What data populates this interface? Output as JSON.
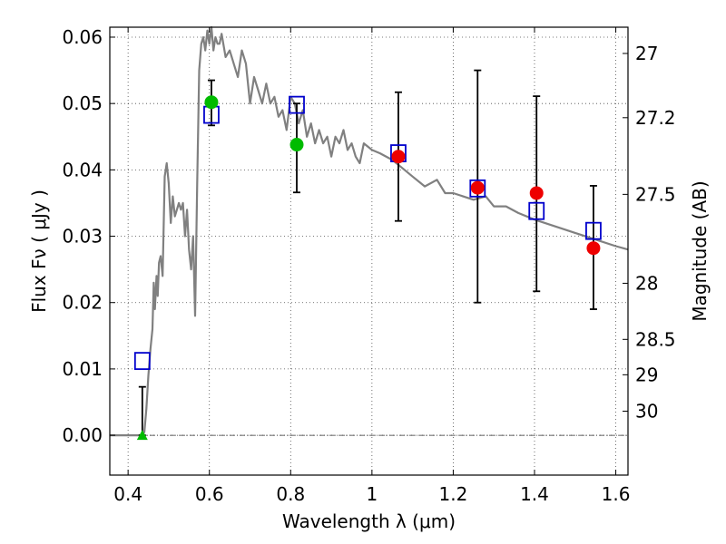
{
  "chart_data": {
    "type": "scatter",
    "title": "",
    "xlabel": "Wavelength  λ (μm)",
    "ylabel": "Flux  Fν  ( μJy )",
    "ylabel_right": "Magnitude (AB)",
    "xlim": [
      0.355,
      1.63
    ],
    "ylim": [
      -0.006,
      0.0615
    ],
    "grid": true,
    "x_ticks": [
      0.4,
      0.6,
      0.8,
      1.0,
      1.2,
      1.4,
      1.6
    ],
    "x_tick_labels": [
      "0.4",
      "0.6",
      "0.8",
      "1",
      "1.2",
      "1.4",
      "1.6"
    ],
    "y_ticks": [
      0.0,
      0.01,
      0.02,
      0.03,
      0.04,
      0.05,
      0.06
    ],
    "y_tick_labels": [
      "0.00",
      "0.01",
      "0.02",
      "0.03",
      "0.04",
      "0.05",
      "0.06"
    ],
    "mag_ticks": [
      {
        "label": "27",
        "mag": 27.0
      },
      {
        "label": "27.2",
        "mag": 27.2
      },
      {
        "label": "27.5",
        "mag": 27.5
      },
      {
        "label": "28",
        "mag": 28.0
      },
      {
        "label": "28.5",
        "mag": 28.5
      },
      {
        "label": "29",
        "mag": 29.0
      },
      {
        "label": "30",
        "mag": 30.0
      }
    ],
    "series": [
      {
        "kind": "line",
        "color": "#808080",
        "x": [
          0.355,
          0.42,
          0.425,
          0.43,
          0.435,
          0.44,
          0.445,
          0.45,
          0.455,
          0.46,
          0.463,
          0.466,
          0.47,
          0.473,
          0.476,
          0.48,
          0.485,
          0.49,
          0.495,
          0.5,
          0.505,
          0.51,
          0.515,
          0.52,
          0.525,
          0.53,
          0.535,
          0.54,
          0.545,
          0.55,
          0.555,
          0.56,
          0.565,
          0.57,
          0.575,
          0.58,
          0.585,
          0.59,
          0.595,
          0.6,
          0.605,
          0.61,
          0.615,
          0.62,
          0.625,
          0.63,
          0.64,
          0.65,
          0.66,
          0.67,
          0.68,
          0.69,
          0.7,
          0.71,
          0.72,
          0.73,
          0.74,
          0.75,
          0.76,
          0.77,
          0.78,
          0.79,
          0.8,
          0.81,
          0.82,
          0.83,
          0.84,
          0.85,
          0.86,
          0.87,
          0.88,
          0.89,
          0.9,
          0.91,
          0.92,
          0.93,
          0.94,
          0.95,
          0.96,
          0.97,
          0.98,
          1.0,
          1.02,
          1.05,
          1.08,
          1.1,
          1.13,
          1.16,
          1.18,
          1.2,
          1.25,
          1.28,
          1.3,
          1.33,
          1.36,
          1.4,
          1.45,
          1.5,
          1.55,
          1.6,
          1.63
        ],
        "y": [
          0.0,
          0.0,
          0.0,
          0.0,
          0.0,
          0.0005,
          0.004,
          0.009,
          0.013,
          0.016,
          0.023,
          0.019,
          0.024,
          0.021,
          0.026,
          0.027,
          0.024,
          0.039,
          0.041,
          0.038,
          0.032,
          0.036,
          0.033,
          0.034,
          0.035,
          0.034,
          0.035,
          0.03,
          0.034,
          0.028,
          0.025,
          0.03,
          0.018,
          0.038,
          0.055,
          0.059,
          0.06,
          0.058,
          0.061,
          0.059,
          0.0615,
          0.058,
          0.06,
          0.059,
          0.059,
          0.0605,
          0.057,
          0.058,
          0.056,
          0.054,
          0.058,
          0.056,
          0.05,
          0.054,
          0.052,
          0.05,
          0.053,
          0.05,
          0.051,
          0.048,
          0.049,
          0.046,
          0.051,
          0.05,
          0.047,
          0.049,
          0.045,
          0.047,
          0.044,
          0.046,
          0.044,
          0.045,
          0.042,
          0.045,
          0.044,
          0.046,
          0.043,
          0.044,
          0.042,
          0.041,
          0.044,
          0.043,
          0.0425,
          0.0415,
          0.04,
          0.039,
          0.0375,
          0.0385,
          0.0365,
          0.0365,
          0.0355,
          0.036,
          0.0345,
          0.0345,
          0.0335,
          0.0325,
          0.0315,
          0.0305,
          0.0295,
          0.0285,
          0.028
        ]
      },
      {
        "kind": "open-square",
        "color": "#0000cc",
        "x": [
          0.435,
          0.605,
          0.815,
          1.065,
          1.26,
          1.405,
          1.545
        ],
        "y": [
          0.0112,
          0.0483,
          0.0498,
          0.0425,
          0.0372,
          0.0338,
          0.0308
        ]
      },
      {
        "kind": "filled-circle",
        "color": "#00bb00",
        "x": [
          0.605,
          0.815
        ],
        "y": [
          0.0502,
          0.0438
        ],
        "yerr_low": [
          0.0035,
          0.0072
        ],
        "yerr_high": [
          0.0033,
          0.0062
        ]
      },
      {
        "kind": "filled-circle",
        "color": "#ee0000",
        "x": [
          1.065,
          1.26,
          1.405,
          1.545
        ],
        "y": [
          0.042,
          0.0373,
          0.0365,
          0.0282
        ],
        "yerr_low": [
          0.0097,
          0.0173,
          0.0148,
          0.0092
        ],
        "yerr_high": [
          0.0097,
          0.0177,
          0.0146,
          0.0094
        ]
      },
      {
        "kind": "filled-triangle",
        "color": "#00bb00",
        "x": [
          0.435
        ],
        "y": [
          0.0
        ],
        "yerr_low": [
          0.0
        ],
        "yerr_high": [
          0.0073
        ]
      }
    ]
  }
}
